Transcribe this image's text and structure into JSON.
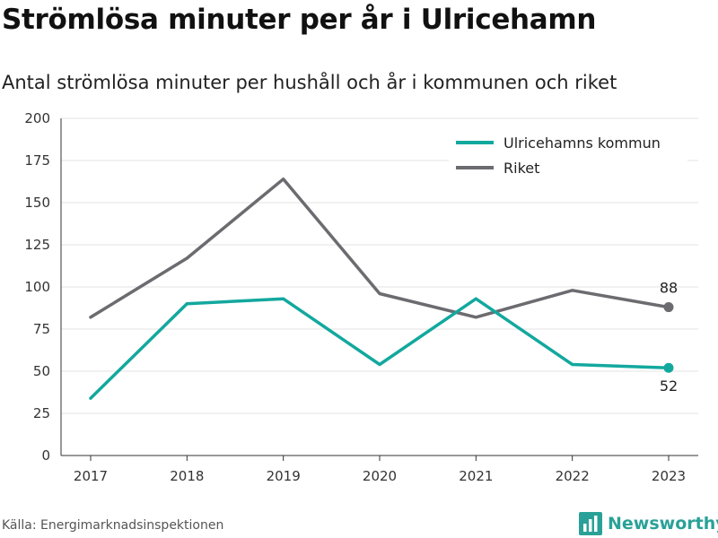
{
  "header": {
    "title": "Strömlösa minuter per år i Ulricehamn",
    "subtitle": "Antal strömlösa minuter per hushåll och år i kommunen och riket"
  },
  "footer": {
    "source": "Källa: Energimarknadsinspektionen",
    "brand": "Newsworthy",
    "brand_icon": "bar-chart-logo-icon",
    "brand_color": "#2aa198"
  },
  "chart_data": {
    "type": "line",
    "title": "Strömlösa minuter per år i Ulricehamn",
    "subtitle": "Antal strömlösa minuter per hushåll och år i kommunen och riket",
    "xlabel": "",
    "ylabel": "",
    "categories": [
      "2017",
      "2018",
      "2019",
      "2020",
      "2021",
      "2022",
      "2023"
    ],
    "ylim": [
      0,
      200
    ],
    "yticks": [
      0,
      25,
      50,
      75,
      100,
      125,
      150,
      175,
      200
    ],
    "grid": true,
    "legend_position": "top-right",
    "series": [
      {
        "name": "Ulricehamns kommun",
        "color": "#13a89e",
        "values": [
          34,
          90,
          93,
          54,
          93,
          54,
          52
        ],
        "end_label": "52"
      },
      {
        "name": "Riket",
        "color": "#6b6b70",
        "values": [
          82,
          117,
          164,
          96,
          82,
          98,
          88
        ],
        "end_label": "88"
      }
    ]
  }
}
